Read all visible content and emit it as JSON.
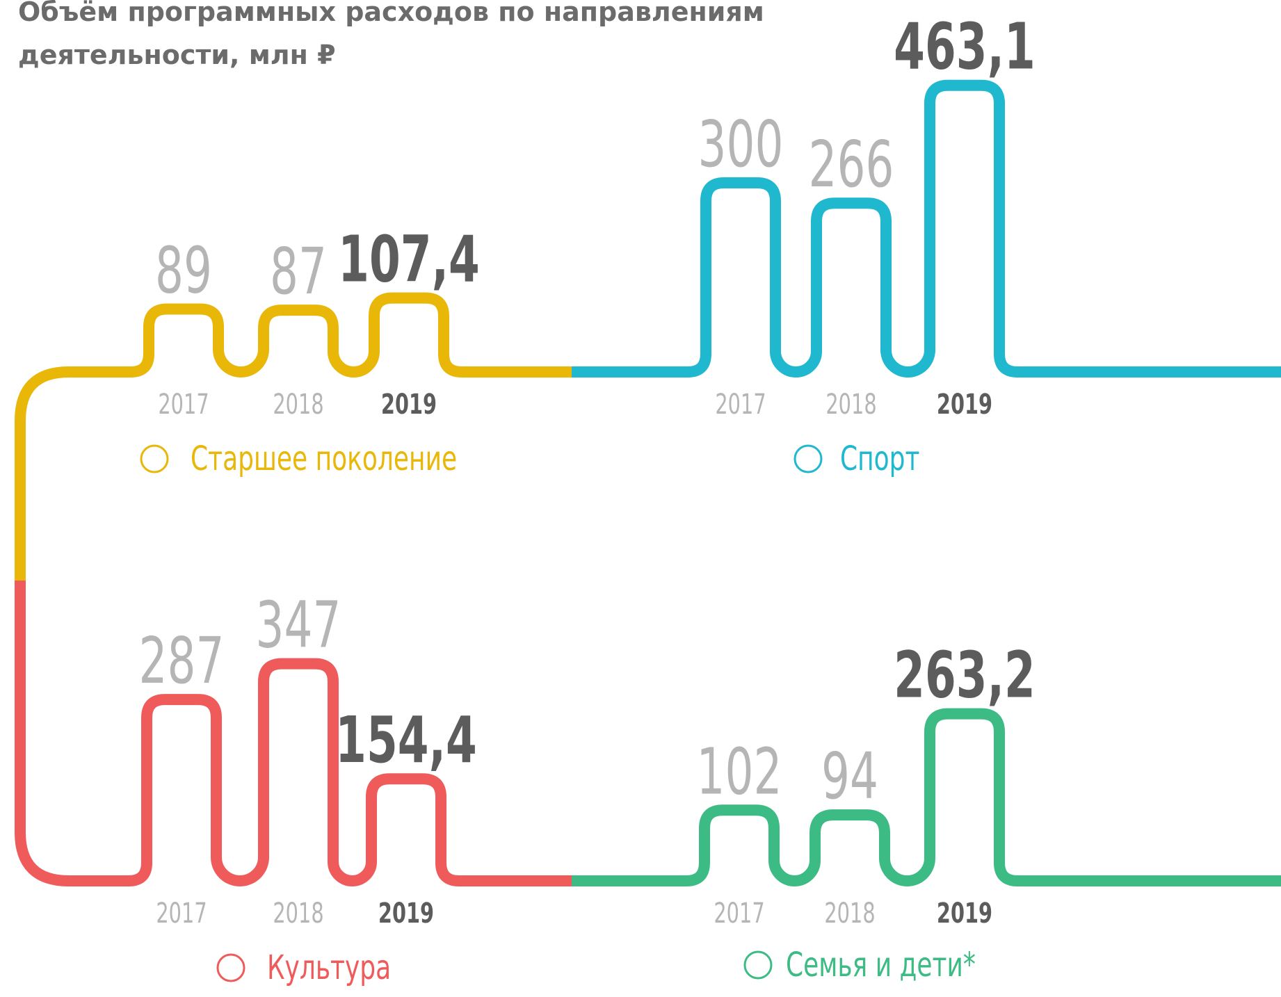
{
  "title": "Объём программных расходов по направлениям деятельности, млн ₽",
  "chart_data": [
    {
      "type": "bar",
      "title": "Старшее поколение",
      "color": "#e8b708",
      "categories": [
        "2017",
        "2018",
        "2019"
      ],
      "values": [
        89,
        87,
        107.4
      ],
      "value_labels": [
        "89",
        "87",
        "107,4"
      ]
    },
    {
      "type": "bar",
      "title": "Спорт",
      "color": "#1fb8cf",
      "categories": [
        "2017",
        "2018",
        "2019"
      ],
      "values": [
        300,
        266,
        463.1
      ],
      "value_labels": [
        "300",
        "266",
        "463,1"
      ]
    },
    {
      "type": "bar",
      "title": "Культура",
      "color": "#ef5b5b",
      "categories": [
        "2017",
        "2018",
        "2019"
      ],
      "values": [
        287,
        347,
        154.4
      ],
      "value_labels": [
        "287",
        "347",
        "154,4"
      ]
    },
    {
      "type": "bar",
      "title": "Семья и дети*",
      "color": "#3dbb84",
      "categories": [
        "2017",
        "2018",
        "2019"
      ],
      "values": [
        102,
        94,
        263.2
      ],
      "value_labels": [
        "102",
        "94",
        "263,2"
      ]
    }
  ]
}
